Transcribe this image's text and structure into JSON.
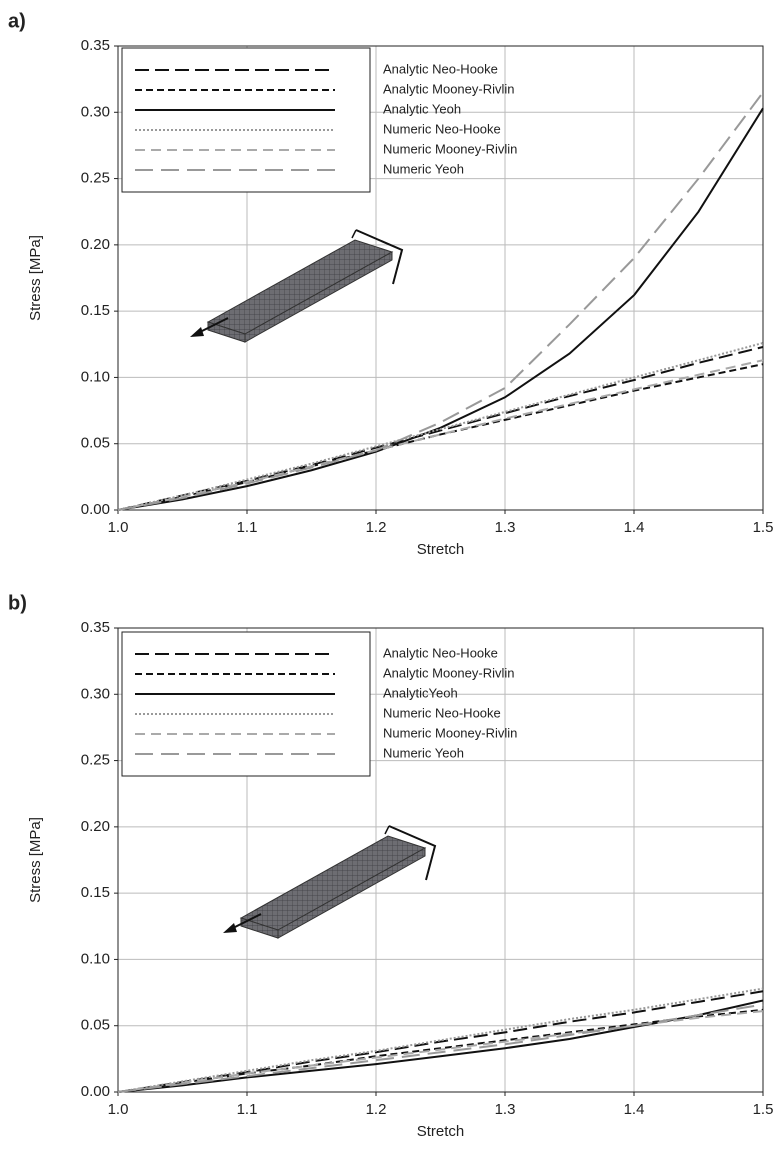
{
  "chart_data": [
    {
      "type": "line",
      "panel_label": "a)",
      "x_label": "Stretch",
      "y_label": "Stress [MPa]",
      "xlim": [
        1.0,
        1.5
      ],
      "xticks": [
        {
          "value": 1.0,
          "label": "1.0"
        },
        1.1,
        1.2,
        1.3,
        1.4,
        1.5
      ],
      "ylim": [
        0,
        0.35
      ],
      "yticks": [
        {
          "value": 0,
          "label": "0.00"
        },
        0.05,
        {
          "value": 0.1,
          "label": "0.10"
        },
        0.15,
        {
          "value": 0.2,
          "label": "0.20"
        },
        0.25,
        {
          "value": 0.3,
          "label": "0.30"
        },
        0.35
      ],
      "grid": true,
      "x": [
        1.0,
        1.05,
        1.1,
        1.15,
        1.2,
        1.25,
        1.3,
        1.35,
        1.4,
        1.45,
        1.5
      ],
      "series": [
        {
          "name": "Analytic Neo-Hooke",
          "color": "#111111",
          "dash": "14 6",
          "values": [
            0,
            0.011,
            0.022,
            0.034,
            0.047,
            0.06,
            0.073,
            0.086,
            0.098,
            0.111,
            0.123
          ]
        },
        {
          "name": "Analytic Mooney-Rivlin",
          "color": "#111111",
          "dash": "7 4",
          "values": [
            0,
            0.01,
            0.021,
            0.033,
            0.045,
            0.057,
            0.068,
            0.079,
            0.09,
            0.1,
            0.11
          ]
        },
        {
          "name": "Analytic Yeoh",
          "color": "#111111",
          "dash": "",
          "values": [
            0,
            0.008,
            0.018,
            0.03,
            0.044,
            0.062,
            0.085,
            0.118,
            0.162,
            0.225,
            0.303
          ]
        },
        {
          "name": "Numeric Neo-Hooke",
          "color": "#999999",
          "dash": "2 2",
          "values": [
            0,
            0.011,
            0.023,
            0.035,
            0.048,
            0.061,
            0.074,
            0.087,
            0.1,
            0.113,
            0.126
          ]
        },
        {
          "name": "Numeric Mooney-Rivlin",
          "color": "#aaaaaa",
          "dash": "10 6",
          "values": [
            0,
            0.01,
            0.021,
            0.033,
            0.045,
            0.057,
            0.069,
            0.08,
            0.091,
            0.102,
            0.113
          ]
        },
        {
          "name": "Numeric Yeoh",
          "color": "#999999",
          "dash": "18 8",
          "values": [
            0,
            0.009,
            0.02,
            0.032,
            0.045,
            0.066,
            0.092,
            0.14,
            0.19,
            0.25,
            0.315
          ]
        }
      ]
    },
    {
      "type": "line",
      "panel_label": "b)",
      "x_label": "Stretch",
      "y_label": "Stress [MPa]",
      "xlim": [
        1.0,
        1.5
      ],
      "xticks": [
        {
          "value": 1.0,
          "label": "1.0"
        },
        1.1,
        1.2,
        1.3,
        1.4,
        1.5
      ],
      "ylim": [
        0,
        0.35
      ],
      "yticks": [
        {
          "value": 0,
          "label": "0.00"
        },
        0.05,
        {
          "value": 0.1,
          "label": "0.10"
        },
        0.15,
        {
          "value": 0.2,
          "label": "0.20"
        },
        0.25,
        {
          "value": 0.3,
          "label": "0.30"
        },
        0.35
      ],
      "grid": true,
      "x": [
        1.0,
        1.05,
        1.1,
        1.15,
        1.2,
        1.25,
        1.3,
        1.35,
        1.4,
        1.45,
        1.5
      ],
      "series": [
        {
          "name": "Analytic Neo-Hooke",
          "color": "#111111",
          "dash": "14 6",
          "values": [
            0,
            0.0075,
            0.015,
            0.023,
            0.03,
            0.038,
            0.045,
            0.053,
            0.06,
            0.068,
            0.076
          ]
        },
        {
          "name": "Analytic Mooney-Rivlin",
          "color": "#111111",
          "dash": "7 4",
          "values": [
            0,
            0.007,
            0.014,
            0.02,
            0.027,
            0.033,
            0.039,
            0.045,
            0.051,
            0.057,
            0.062
          ]
        },
        {
          "name": "AnalyticYeoh",
          "color": "#111111",
          "dash": "",
          "values": [
            0,
            0.005,
            0.011,
            0.016,
            0.021,
            0.027,
            0.033,
            0.04,
            0.049,
            0.058,
            0.069
          ]
        },
        {
          "name": "Numeric Neo-Hooke",
          "color": "#999999",
          "dash": "2 2",
          "values": [
            0,
            0.008,
            0.016,
            0.024,
            0.031,
            0.039,
            0.047,
            0.055,
            0.062,
            0.07,
            0.078
          ]
        },
        {
          "name": "Numeric Mooney-Rivlin",
          "color": "#aaaaaa",
          "dash": "10 6",
          "values": [
            0,
            0.007,
            0.014,
            0.02,
            0.026,
            0.032,
            0.038,
            0.044,
            0.05,
            0.056,
            0.061
          ]
        },
        {
          "name": "Numeric Yeoh",
          "color": "#999999",
          "dash": "18 8",
          "values": [
            0,
            0.006,
            0.012,
            0.018,
            0.024,
            0.03,
            0.036,
            0.043,
            0.05,
            0.058,
            0.066
          ]
        }
      ]
    }
  ]
}
